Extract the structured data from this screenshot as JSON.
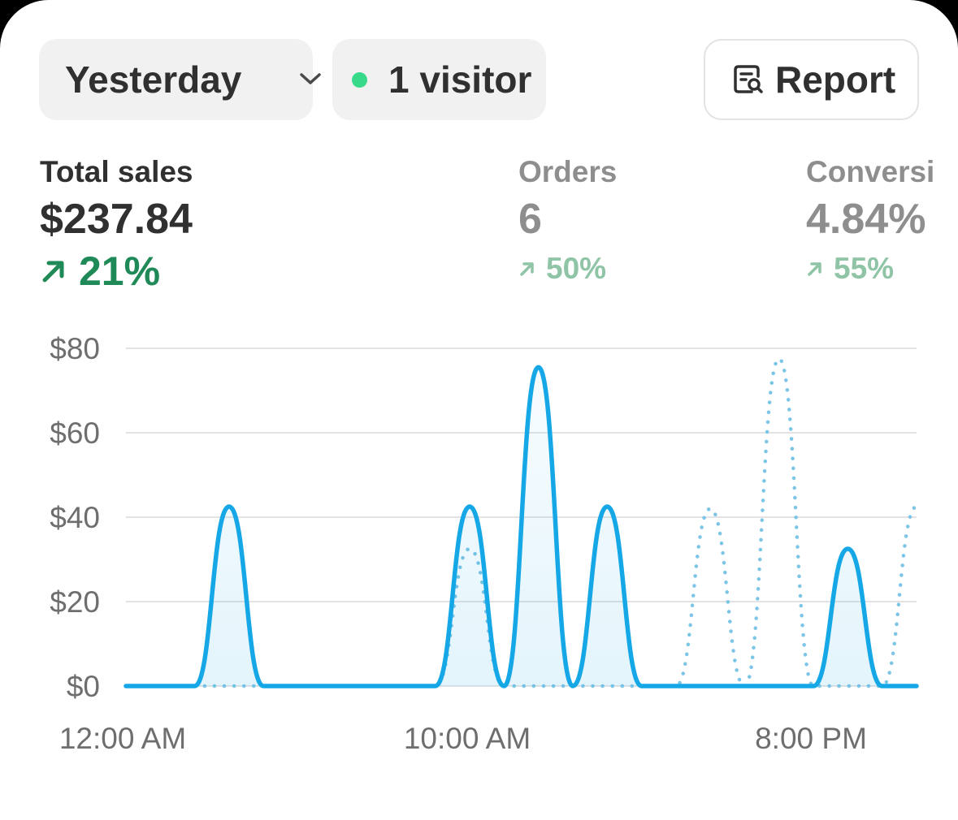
{
  "filters": {
    "date_range": "Yesterday",
    "live_visitors": "1 visitor",
    "report_label": "Report"
  },
  "metrics": [
    {
      "label": "Total sales",
      "value": "$237.84",
      "change": "21%"
    },
    {
      "label": "Orders",
      "value": "6",
      "change": "50%"
    },
    {
      "label": "Conversi",
      "value": "4.84%",
      "change": "55%"
    }
  ],
  "colors": {
    "accent_line": "#16a7e6",
    "comparison_line": "#7cc5e6",
    "positive_change": "#1f8a58",
    "positive_change_muted": "#8fc4a6",
    "live_dot": "#39d98a"
  },
  "icons": {
    "date_range": "chevron-down-icon",
    "live": "live-dot-icon",
    "report": "report-search-icon",
    "change": "arrow-up-right-icon"
  },
  "chart_data": {
    "type": "line",
    "x_tick_labels": [
      "12:00 AM",
      "10:00 AM",
      "8:00 PM"
    ],
    "y_tick_labels": [
      "$0",
      "$20",
      "$40",
      "$60",
      "$80"
    ],
    "ylim": [
      0,
      80
    ],
    "grid": true,
    "x": [
      0,
      1,
      2,
      3,
      4,
      5,
      6,
      7,
      8,
      9,
      10,
      11,
      12,
      13,
      14,
      15,
      16,
      17,
      18,
      19,
      20,
      21,
      22,
      23
    ],
    "series": [
      {
        "style": "solid",
        "values": [
          0,
          0,
          0,
          42.5,
          0,
          0,
          0,
          0,
          0,
          0,
          42.5,
          0,
          75.5,
          0,
          42.5,
          0,
          0,
          0,
          0,
          0,
          0,
          32.5,
          0,
          0
        ]
      },
      {
        "style": "dotted",
        "values": [
          0,
          0,
          0,
          0,
          0,
          0,
          0,
          0,
          0,
          0,
          32.5,
          0,
          0,
          0,
          0,
          0,
          0,
          42,
          0,
          77.5,
          0,
          0,
          0,
          42.5
        ]
      }
    ]
  }
}
